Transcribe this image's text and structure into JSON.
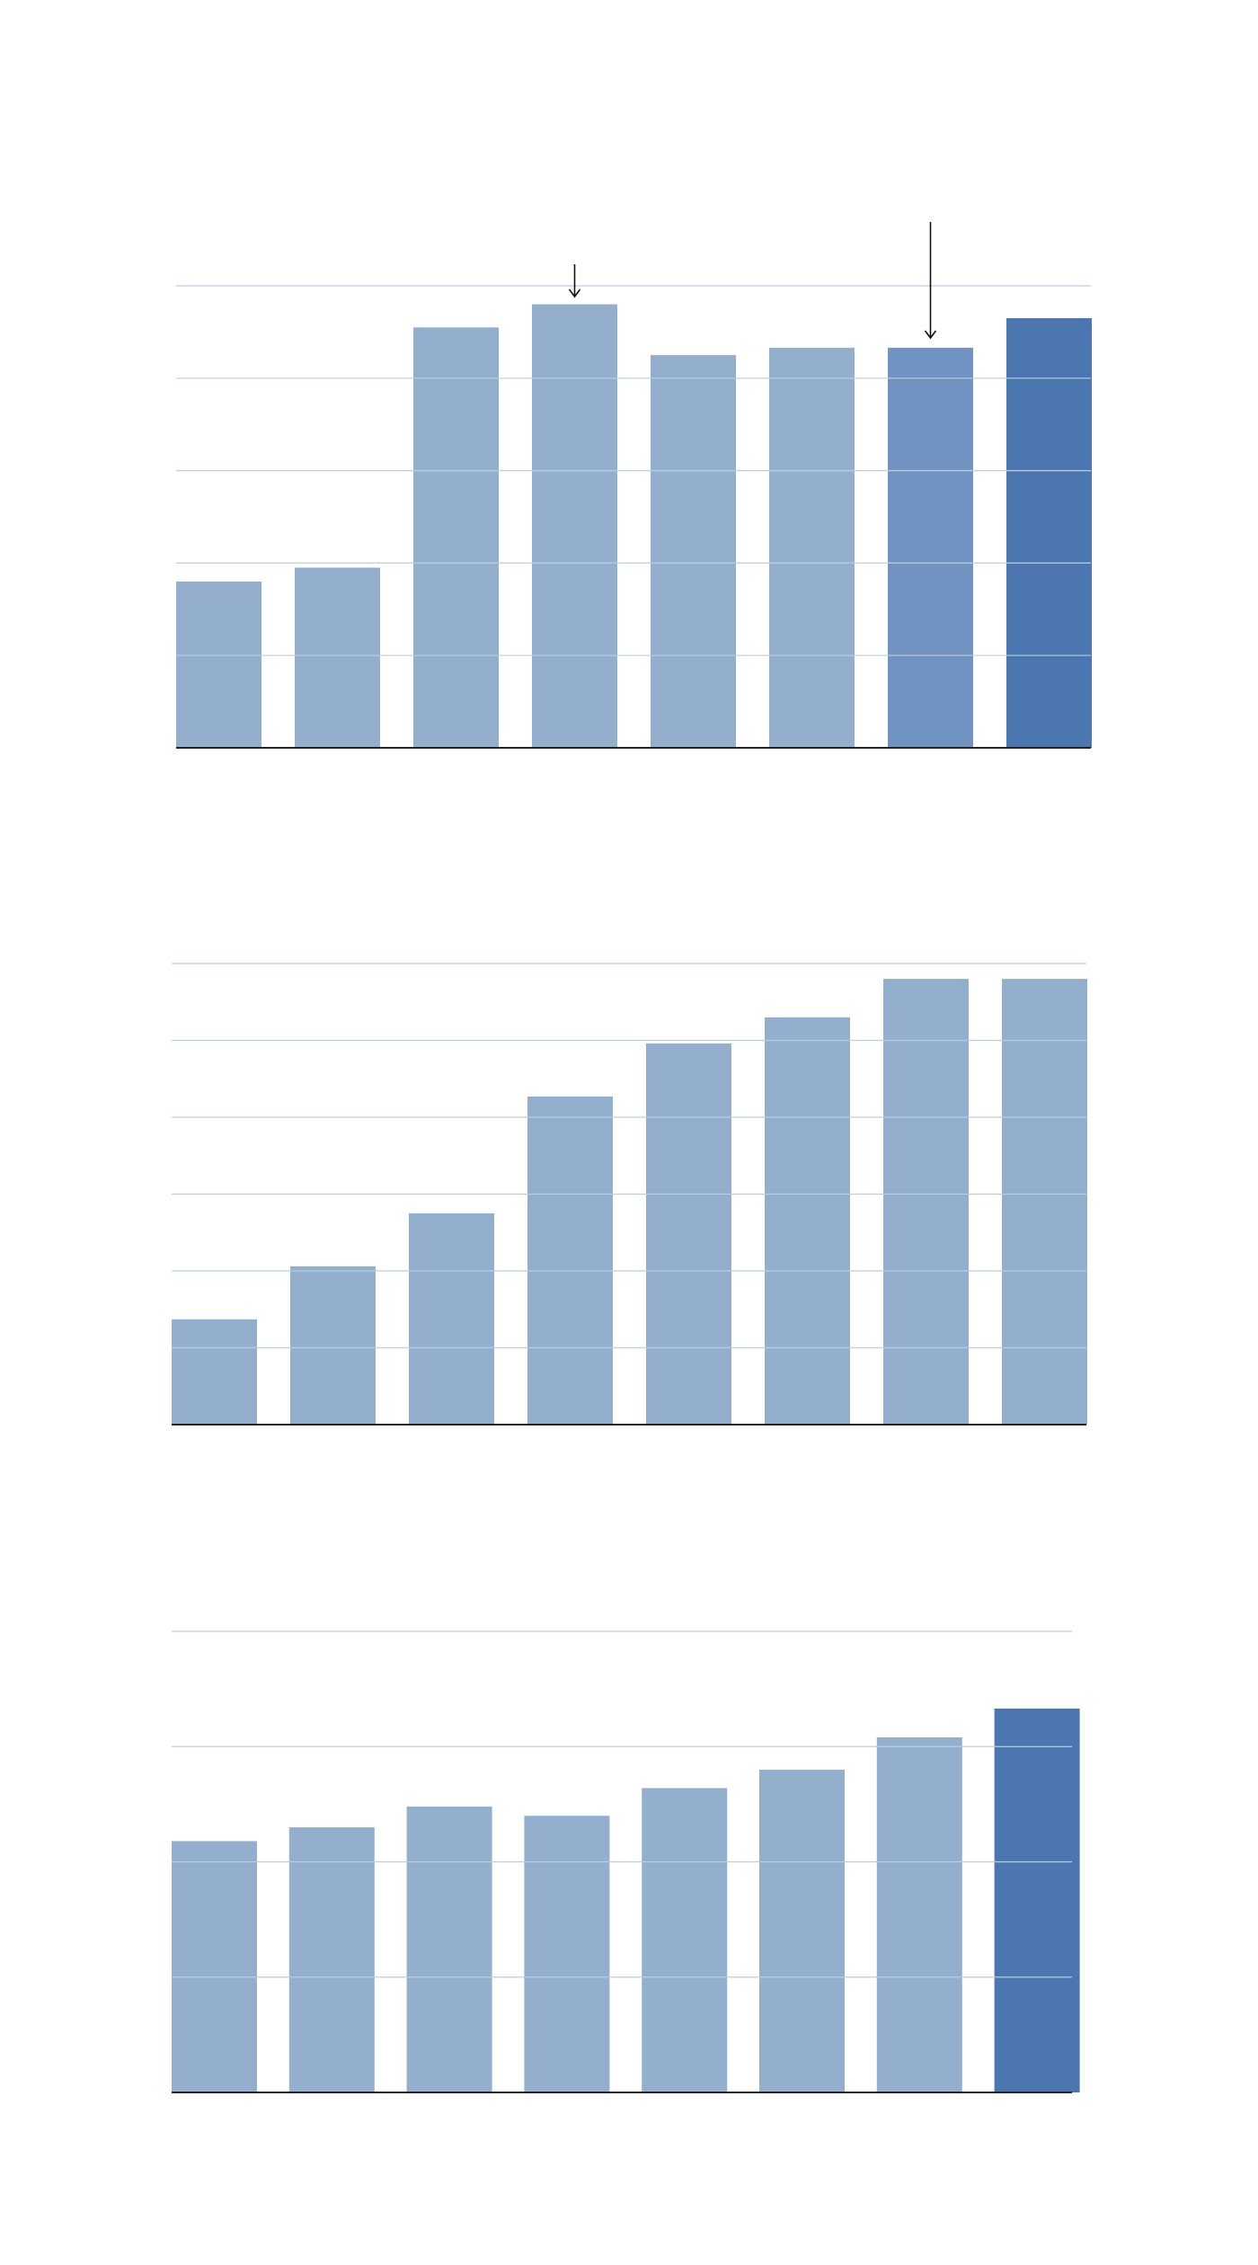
{
  "colors": {
    "bar_default": "#94aece",
    "bar_medium": "#7093c1",
    "bar_highlight": "#4c76b0",
    "grid": "#b9cfdc",
    "axis": "#222222"
  },
  "chart_data": [
    {
      "type": "bar",
      "categories": [
        "",
        "",
        "",
        "",
        "",
        "",
        "",
        ""
      ],
      "values": [
        18,
        19.5,
        45.5,
        48,
        42.5,
        43.3,
        43.3,
        46.5
      ],
      "bar_styles": [
        "default",
        "default",
        "default",
        "default",
        "default",
        "default",
        "medium",
        "highlight"
      ],
      "ylim": [
        0,
        50
      ],
      "gridlines": [
        10,
        20,
        30,
        40,
        50
      ],
      "grid": true,
      "annotations": [
        {
          "kind": "arrow",
          "category_index": 3
        },
        {
          "kind": "arrow",
          "category_index": 6
        }
      ]
    },
    {
      "type": "bar",
      "categories": [
        "",
        "",
        "",
        "",
        "",
        "",
        "",
        ""
      ],
      "values": [
        13.7,
        20.6,
        27.5,
        42.7,
        49.6,
        53,
        58,
        58
      ],
      "bar_styles": [
        "default",
        "default",
        "default",
        "default",
        "default",
        "default",
        "default",
        "default"
      ],
      "ylim": [
        0,
        60
      ],
      "gridlines": [
        10,
        20,
        30,
        40,
        50,
        60
      ],
      "grid": true,
      "annotations": []
    },
    {
      "type": "bar",
      "categories": [
        "",
        "",
        "",
        "",
        "",
        "",
        "",
        ""
      ],
      "values": [
        21.8,
        23,
        24.8,
        24,
        26.4,
        28,
        30.8,
        33.3
      ],
      "bar_styles": [
        "default",
        "default",
        "default",
        "default",
        "default",
        "default",
        "default",
        "highlight"
      ],
      "ylim": [
        0,
        40
      ],
      "gridlines": [
        10,
        20,
        30,
        40
      ],
      "grid": true,
      "annotations": []
    }
  ]
}
